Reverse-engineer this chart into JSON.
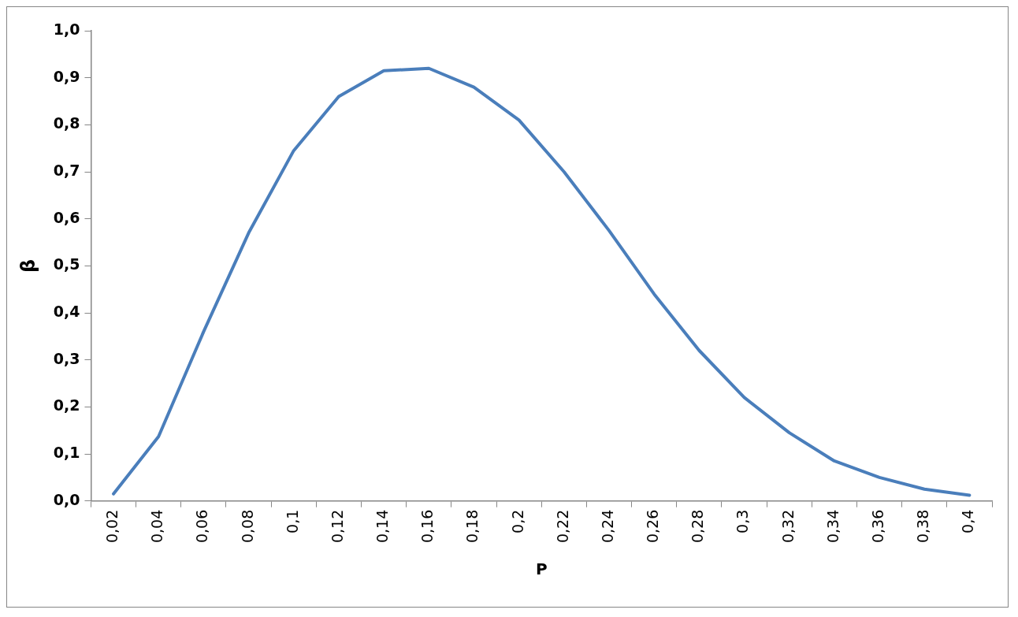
{
  "chart_data": {
    "type": "line",
    "xlabel": "P",
    "ylabel": "β",
    "categories": [
      "0,02",
      "0,04",
      "0,06",
      "0,08",
      "0,1",
      "0,12",
      "0,14",
      "0,16",
      "0,18",
      "0,2",
      "0,22",
      "0,24",
      "0,26",
      "0,28",
      "0,3",
      "0,32",
      "0,34",
      "0,36",
      "0,38",
      "0,4"
    ],
    "series": [
      {
        "color": "#4a7ebb",
        "values": [
          0.015,
          0.137,
          0.36,
          0.57,
          0.745,
          0.86,
          0.915,
          0.92,
          0.88,
          0.81,
          0.7,
          0.575,
          0.44,
          0.32,
          0.22,
          0.145,
          0.085,
          0.05,
          0.025,
          0.012
        ]
      }
    ],
    "ylim": [
      0,
      1
    ],
    "yticks": [
      {
        "value": 0,
        "label": "0,0"
      },
      {
        "value": 0.1,
        "label": "0,1"
      },
      {
        "value": 0.2,
        "label": "0,2"
      },
      {
        "value": 0.3,
        "label": "0,3"
      },
      {
        "value": 0.4,
        "label": "0,4"
      },
      {
        "value": 0.5,
        "label": "0,5"
      },
      {
        "value": 0.6,
        "label": "0,6"
      },
      {
        "value": 0.7,
        "label": "0,7"
      },
      {
        "value": 0.8,
        "label": "0,8"
      },
      {
        "value": 0.9,
        "label": "0,9"
      },
      {
        "value": 1,
        "label": "1,0"
      }
    ],
    "grid": false,
    "legend": false,
    "marker": "none",
    "line_style": "solid"
  }
}
